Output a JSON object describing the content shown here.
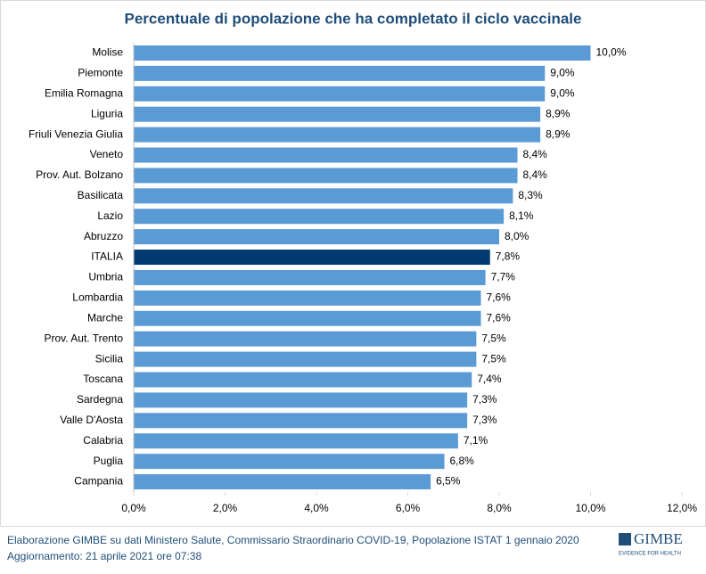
{
  "chart_data": {
    "type": "hbar",
    "title": "Percentuale di popolazione che ha completato il ciclo vaccinale",
    "categories": [
      "Molise",
      "Piemonte",
      "Emilia Romagna",
      "Liguria",
      "Friuli Venezia Giulia",
      "Veneto",
      "Prov. Aut. Bolzano",
      "Basilicata",
      "Lazio",
      "Abruzzo",
      "ITALIA",
      "Umbria",
      "Lombardia",
      "Marche",
      "Prov. Aut. Trento",
      "Sicilia",
      "Toscana",
      "Sardegna",
      "Valle D'Aosta",
      "Calabria",
      "Puglia",
      "Campania"
    ],
    "values": [
      10.0,
      9.0,
      9.0,
      8.9,
      8.9,
      8.4,
      8.4,
      8.3,
      8.1,
      8.0,
      7.8,
      7.7,
      7.6,
      7.6,
      7.5,
      7.5,
      7.4,
      7.3,
      7.3,
      7.1,
      6.8,
      6.5
    ],
    "value_labels": [
      "10,0%",
      "9,0%",
      "9,0%",
      "8,9%",
      "8,9%",
      "8,4%",
      "8,4%",
      "8,3%",
      "8,1%",
      "8,0%",
      "7,8%",
      "7,7%",
      "7,6%",
      "7,6%",
      "7,5%",
      "7,5%",
      "7,4%",
      "7,3%",
      "7,3%",
      "7,1%",
      "6,8%",
      "6,5%"
    ],
    "colors": [
      "#5b9bd5",
      "#5b9bd5",
      "#5b9bd5",
      "#5b9bd5",
      "#5b9bd5",
      "#5b9bd5",
      "#5b9bd5",
      "#5b9bd5",
      "#5b9bd5",
      "#5b9bd5",
      "#003a70",
      "#5b9bd5",
      "#5b9bd5",
      "#5b9bd5",
      "#5b9bd5",
      "#5b9bd5",
      "#5b9bd5",
      "#5b9bd5",
      "#5b9bd5",
      "#5b9bd5",
      "#5b9bd5",
      "#5b9bd5"
    ],
    "xlim": [
      0,
      12
    ],
    "xticks": [
      {
        "value": 0,
        "label": "0,0%"
      },
      {
        "value": 2,
        "label": "2,0%"
      },
      {
        "value": 4,
        "label": "4,0%"
      },
      {
        "value": 6,
        "label": "6,0%"
      },
      {
        "value": 8,
        "label": "8,0%"
      },
      {
        "value": 10,
        "label": "10,0%"
      },
      {
        "value": 12,
        "label": "12,0%"
      }
    ],
    "grid": false,
    "source": "Elaborazione GIMBE su dati Ministero Salute, Commissario  Straordinario COVID-19, Popolazione  ISTAT 1 gennaio 2020",
    "updated": "Aggiornamento: 21 aprile 2021 ore 07:38",
    "logo": "GIMBE",
    "logo_tagline": "EVIDENCE FOR HEALTH"
  }
}
